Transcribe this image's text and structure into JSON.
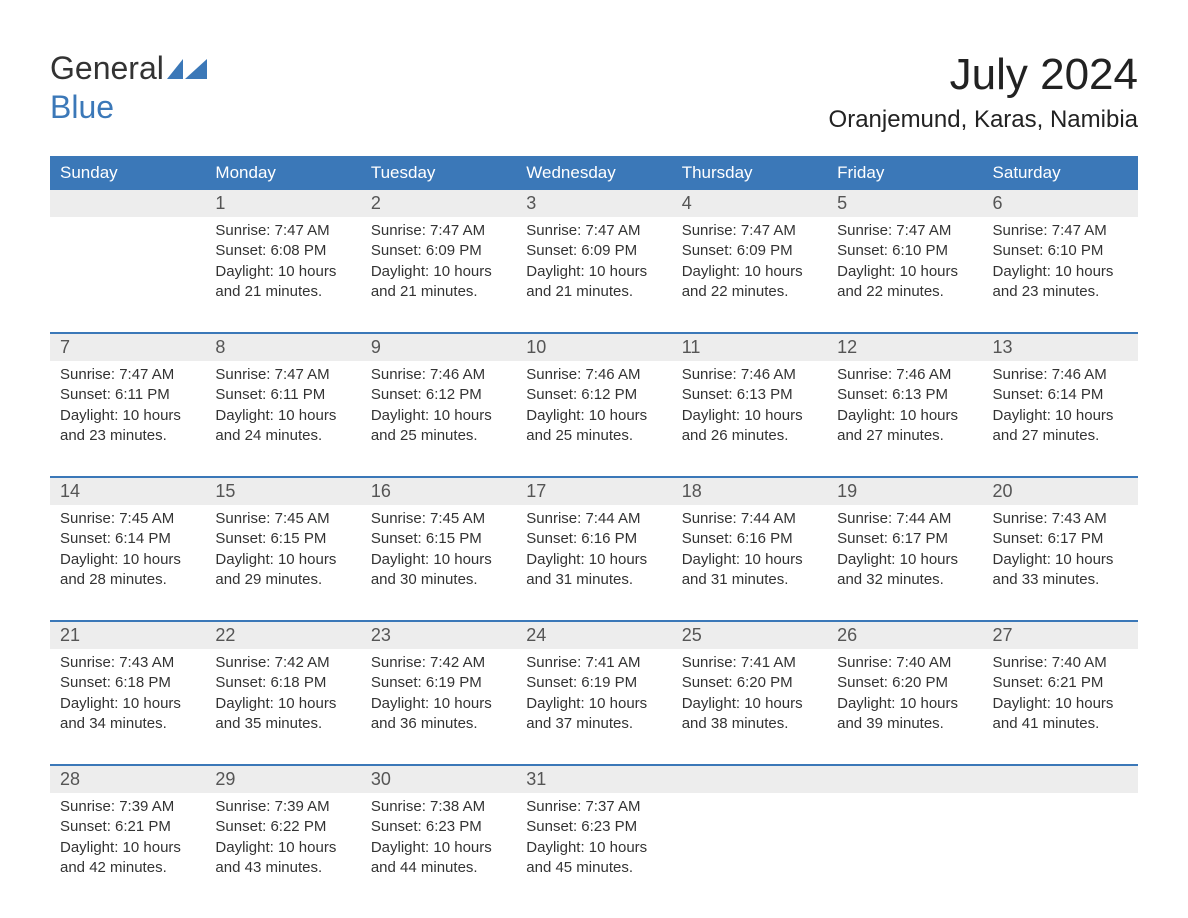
{
  "logo": {
    "word1": "General",
    "word2": "Blue"
  },
  "title": "July 2024",
  "location": "Oranjemund, Karas, Namibia",
  "colors": {
    "header_bg": "#3b78b8",
    "header_text": "#ffffff",
    "daynum_bg": "#ededed",
    "body_text": "#333333",
    "rule": "#3b78b8",
    "page_bg": "#ffffff"
  },
  "weekdays": [
    "Sunday",
    "Monday",
    "Tuesday",
    "Wednesday",
    "Thursday",
    "Friday",
    "Saturday"
  ],
  "weeks": [
    {
      "days": [
        {
          "num": "",
          "sunrise": "",
          "sunset": "",
          "daylight": ""
        },
        {
          "num": "1",
          "sunrise": "Sunrise: 7:47 AM",
          "sunset": "Sunset: 6:08 PM",
          "daylight": "Daylight: 10 hours and 21 minutes."
        },
        {
          "num": "2",
          "sunrise": "Sunrise: 7:47 AM",
          "sunset": "Sunset: 6:09 PM",
          "daylight": "Daylight: 10 hours and 21 minutes."
        },
        {
          "num": "3",
          "sunrise": "Sunrise: 7:47 AM",
          "sunset": "Sunset: 6:09 PM",
          "daylight": "Daylight: 10 hours and 21 minutes."
        },
        {
          "num": "4",
          "sunrise": "Sunrise: 7:47 AM",
          "sunset": "Sunset: 6:09 PM",
          "daylight": "Daylight: 10 hours and 22 minutes."
        },
        {
          "num": "5",
          "sunrise": "Sunrise: 7:47 AM",
          "sunset": "Sunset: 6:10 PM",
          "daylight": "Daylight: 10 hours and 22 minutes."
        },
        {
          "num": "6",
          "sunrise": "Sunrise: 7:47 AM",
          "sunset": "Sunset: 6:10 PM",
          "daylight": "Daylight: 10 hours and 23 minutes."
        }
      ]
    },
    {
      "days": [
        {
          "num": "7",
          "sunrise": "Sunrise: 7:47 AM",
          "sunset": "Sunset: 6:11 PM",
          "daylight": "Daylight: 10 hours and 23 minutes."
        },
        {
          "num": "8",
          "sunrise": "Sunrise: 7:47 AM",
          "sunset": "Sunset: 6:11 PM",
          "daylight": "Daylight: 10 hours and 24 minutes."
        },
        {
          "num": "9",
          "sunrise": "Sunrise: 7:46 AM",
          "sunset": "Sunset: 6:12 PM",
          "daylight": "Daylight: 10 hours and 25 minutes."
        },
        {
          "num": "10",
          "sunrise": "Sunrise: 7:46 AM",
          "sunset": "Sunset: 6:12 PM",
          "daylight": "Daylight: 10 hours and 25 minutes."
        },
        {
          "num": "11",
          "sunrise": "Sunrise: 7:46 AM",
          "sunset": "Sunset: 6:13 PM",
          "daylight": "Daylight: 10 hours and 26 minutes."
        },
        {
          "num": "12",
          "sunrise": "Sunrise: 7:46 AM",
          "sunset": "Sunset: 6:13 PM",
          "daylight": "Daylight: 10 hours and 27 minutes."
        },
        {
          "num": "13",
          "sunrise": "Sunrise: 7:46 AM",
          "sunset": "Sunset: 6:14 PM",
          "daylight": "Daylight: 10 hours and 27 minutes."
        }
      ]
    },
    {
      "days": [
        {
          "num": "14",
          "sunrise": "Sunrise: 7:45 AM",
          "sunset": "Sunset: 6:14 PM",
          "daylight": "Daylight: 10 hours and 28 minutes."
        },
        {
          "num": "15",
          "sunrise": "Sunrise: 7:45 AM",
          "sunset": "Sunset: 6:15 PM",
          "daylight": "Daylight: 10 hours and 29 minutes."
        },
        {
          "num": "16",
          "sunrise": "Sunrise: 7:45 AM",
          "sunset": "Sunset: 6:15 PM",
          "daylight": "Daylight: 10 hours and 30 minutes."
        },
        {
          "num": "17",
          "sunrise": "Sunrise: 7:44 AM",
          "sunset": "Sunset: 6:16 PM",
          "daylight": "Daylight: 10 hours and 31 minutes."
        },
        {
          "num": "18",
          "sunrise": "Sunrise: 7:44 AM",
          "sunset": "Sunset: 6:16 PM",
          "daylight": "Daylight: 10 hours and 31 minutes."
        },
        {
          "num": "19",
          "sunrise": "Sunrise: 7:44 AM",
          "sunset": "Sunset: 6:17 PM",
          "daylight": "Daylight: 10 hours and 32 minutes."
        },
        {
          "num": "20",
          "sunrise": "Sunrise: 7:43 AM",
          "sunset": "Sunset: 6:17 PM",
          "daylight": "Daylight: 10 hours and 33 minutes."
        }
      ]
    },
    {
      "days": [
        {
          "num": "21",
          "sunrise": "Sunrise: 7:43 AM",
          "sunset": "Sunset: 6:18 PM",
          "daylight": "Daylight: 10 hours and 34 minutes."
        },
        {
          "num": "22",
          "sunrise": "Sunrise: 7:42 AM",
          "sunset": "Sunset: 6:18 PM",
          "daylight": "Daylight: 10 hours and 35 minutes."
        },
        {
          "num": "23",
          "sunrise": "Sunrise: 7:42 AM",
          "sunset": "Sunset: 6:19 PM",
          "daylight": "Daylight: 10 hours and 36 minutes."
        },
        {
          "num": "24",
          "sunrise": "Sunrise: 7:41 AM",
          "sunset": "Sunset: 6:19 PM",
          "daylight": "Daylight: 10 hours and 37 minutes."
        },
        {
          "num": "25",
          "sunrise": "Sunrise: 7:41 AM",
          "sunset": "Sunset: 6:20 PM",
          "daylight": "Daylight: 10 hours and 38 minutes."
        },
        {
          "num": "26",
          "sunrise": "Sunrise: 7:40 AM",
          "sunset": "Sunset: 6:20 PM",
          "daylight": "Daylight: 10 hours and 39 minutes."
        },
        {
          "num": "27",
          "sunrise": "Sunrise: 7:40 AM",
          "sunset": "Sunset: 6:21 PM",
          "daylight": "Daylight: 10 hours and 41 minutes."
        }
      ]
    },
    {
      "days": [
        {
          "num": "28",
          "sunrise": "Sunrise: 7:39 AM",
          "sunset": "Sunset: 6:21 PM",
          "daylight": "Daylight: 10 hours and 42 minutes."
        },
        {
          "num": "29",
          "sunrise": "Sunrise: 7:39 AM",
          "sunset": "Sunset: 6:22 PM",
          "daylight": "Daylight: 10 hours and 43 minutes."
        },
        {
          "num": "30",
          "sunrise": "Sunrise: 7:38 AM",
          "sunset": "Sunset: 6:23 PM",
          "daylight": "Daylight: 10 hours and 44 minutes."
        },
        {
          "num": "31",
          "sunrise": "Sunrise: 7:37 AM",
          "sunset": "Sunset: 6:23 PM",
          "daylight": "Daylight: 10 hours and 45 minutes."
        },
        {
          "num": "",
          "sunrise": "",
          "sunset": "",
          "daylight": ""
        },
        {
          "num": "",
          "sunrise": "",
          "sunset": "",
          "daylight": ""
        },
        {
          "num": "",
          "sunrise": "",
          "sunset": "",
          "daylight": ""
        }
      ]
    }
  ]
}
